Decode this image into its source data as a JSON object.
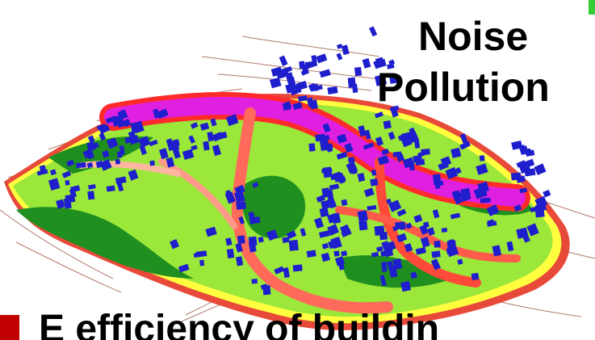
{
  "title": {
    "line1": "Noise",
    "line2": "Pollution"
  },
  "bottom_text": "E       efficiency of buildin",
  "colors": {
    "building": "#1e1ecc",
    "road_noise": "#e020e0",
    "high_noise": "#ff2a2a",
    "mid_noise": "#ffb6a0",
    "low_noise": "#ffff40",
    "quiet": "#9be73a",
    "quietest": "#1f8f1f",
    "bullet": "#c00000",
    "accent": "#33cc33"
  }
}
